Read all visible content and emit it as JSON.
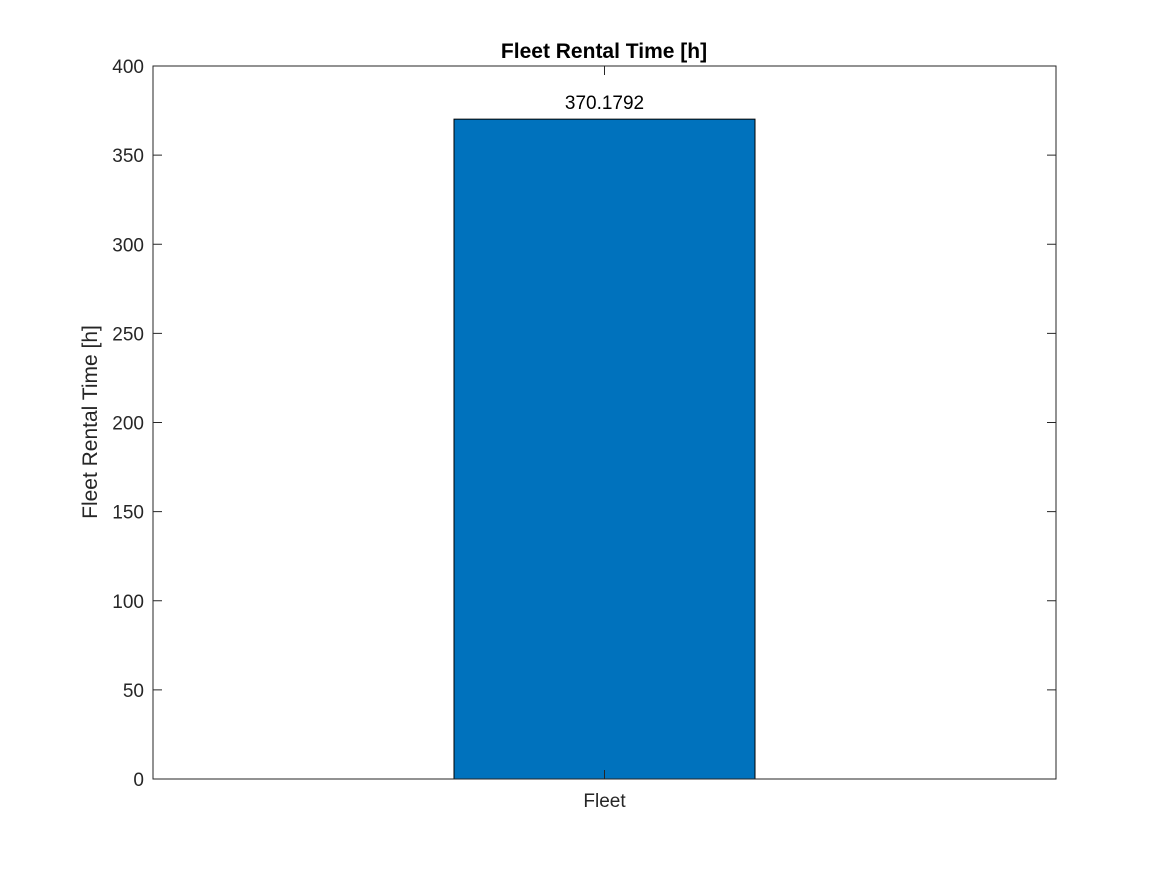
{
  "chart_data": {
    "type": "bar",
    "title": "Fleet Rental Time [h]",
    "xlabel": "",
    "ylabel": "Fleet Rental Time [h]",
    "categories": [
      "Fleet"
    ],
    "values": [
      370.1792
    ],
    "data_labels": [
      "370.1792"
    ],
    "ylim": [
      0,
      400
    ],
    "yticks": [
      0,
      50,
      100,
      150,
      200,
      250,
      300,
      350,
      400
    ],
    "ytick_labels": [
      "0",
      "50",
      "100",
      "150",
      "200",
      "250",
      "300",
      "350",
      "400"
    ],
    "grid": false,
    "legend": "none",
    "bar_color": "#0072BD",
    "axis_color": "#262626"
  }
}
